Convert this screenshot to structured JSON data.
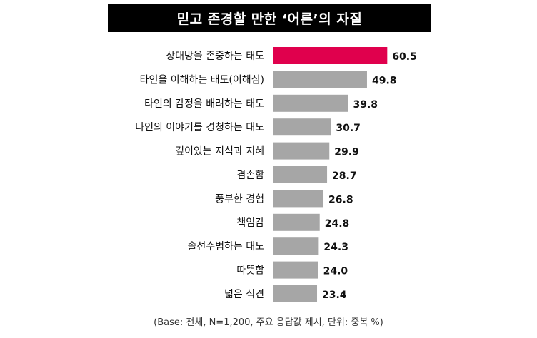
{
  "title": "믿고 존경할 만한 ‘어른’의 자질",
  "footnote": "(Base: 전체, N=1,200, 주요 응답값 제시, 단위: 중복 %)",
  "colors": {
    "highlight": "#e0004d",
    "bar": "#a6a6a6",
    "title_bg": "#000000"
  },
  "chart_data": {
    "type": "bar",
    "orientation": "horizontal",
    "title": "믿고 존경할 만한 ‘어른’의 자질",
    "categories": [
      "상대방을 존중하는 태도",
      "타인을 이해하는 태도(이해심)",
      "타인의 감정을 배려하는 태도",
      "타인의 이야기를 경청하는 태도",
      "깊이있는 지식과 지혜",
      "겸손함",
      "풍부한 경험",
      "책임감",
      "솔선수범하는 태도",
      "따뜻함",
      "넓은 식견"
    ],
    "values": [
      60.5,
      49.8,
      39.8,
      30.7,
      29.9,
      28.7,
      26.8,
      24.8,
      24.3,
      24.0,
      23.4
    ],
    "value_labels": [
      "60.5",
      "49.8",
      "39.8",
      "30.7",
      "29.9",
      "28.7",
      "26.8",
      "24.8",
      "24.3",
      "24.0",
      "23.4"
    ],
    "highlight_index": 0,
    "xlabel": "",
    "ylabel": "",
    "grid": false
  }
}
